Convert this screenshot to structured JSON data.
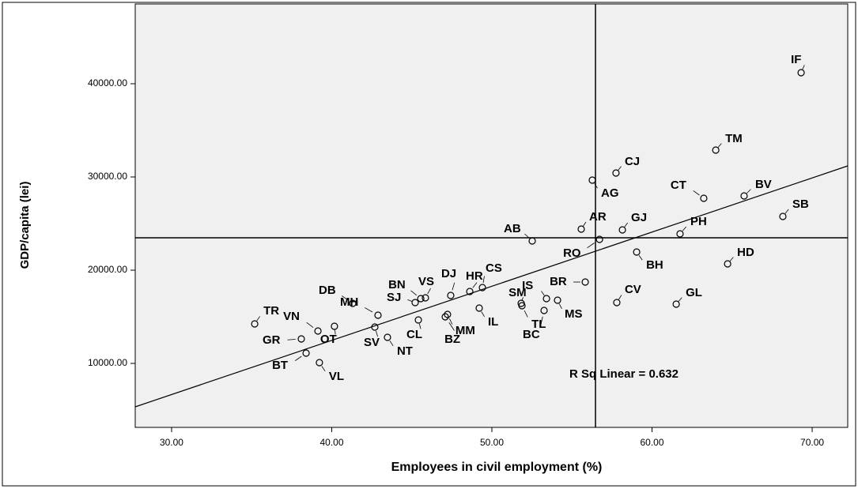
{
  "chart_data": {
    "type": "scatter",
    "xlabel": "Employees in civil employment (%)",
    "ylabel": "GDP/capita (lei)",
    "annotation": "R Sq Linear = 0.632",
    "xlim": [
      27.73,
      72.22
    ],
    "ylim": [
      3136,
      48559
    ],
    "xticks": [
      {
        "value": 30,
        "label": "30.00"
      },
      {
        "value": 40,
        "label": "40.00"
      },
      {
        "value": 50,
        "label": "50.00"
      },
      {
        "value": 60,
        "label": "60.00"
      },
      {
        "value": 70,
        "label": "70.00"
      }
    ],
    "yticks": [
      {
        "value": 10000,
        "label": "10000.00"
      },
      {
        "value": 20000,
        "label": "20000.00"
      },
      {
        "value": 30000,
        "label": "30000.00"
      },
      {
        "value": 40000,
        "label": "40000.00"
      }
    ],
    "point_labels": [
      "IF",
      "TM",
      "CJ",
      "AG",
      "CT",
      "BV",
      "SB",
      "AR",
      "GJ",
      "PH",
      "AB",
      "RO",
      "BH",
      "HD",
      "CS",
      "HR",
      "DJ",
      "VS",
      "BN",
      "SJ",
      "DB",
      "MH",
      "BR",
      "IS",
      "SM",
      "TL",
      "MS",
      "BC",
      "CV",
      "GL",
      "IL",
      "MM",
      "BZ",
      "CL",
      "TR",
      "VN",
      "OT",
      "SV",
      "NT",
      "GR",
      "BT",
      "VL"
    ],
    "x": [
      69.31,
      63.98,
      57.75,
      56.27,
      63.23,
      65.75,
      68.17,
      55.58,
      58.15,
      61.75,
      52.52,
      56.72,
      59.04,
      64.72,
      49.41,
      48.62,
      47.43,
      45.85,
      45.56,
      45.21,
      41.31,
      42.89,
      55.83,
      53.41,
      51.83,
      51.88,
      54.1,
      53.26,
      57.8,
      61.51,
      49.21,
      47.23,
      47.09,
      45.41,
      35.19,
      39.14,
      40.17,
      42.69,
      43.48,
      38.1,
      38.4,
      39.23
    ],
    "values": [
      41186,
      32881,
      30424,
      29661,
      27712,
      27966,
      25762,
      24406,
      24322,
      23898,
      23135,
      23305,
      21948,
      20677,
      18135,
      17711,
      17288,
      17033,
      16949,
      16525,
      16440,
      15168,
      18728,
      16948,
      16440,
      16186,
      16778,
      15677,
      16525,
      16355,
      15931,
      15253,
      15000,
      14661,
      14236,
      13474,
      13982,
      13898,
      12796,
      12626,
      11101,
      10083
    ],
    "reference_lines": {
      "x": 56.47,
      "y": 23475
    },
    "fit": {
      "x": [
        27.73,
        72.22
      ],
      "values": [
        5339,
        31186
      ]
    }
  }
}
